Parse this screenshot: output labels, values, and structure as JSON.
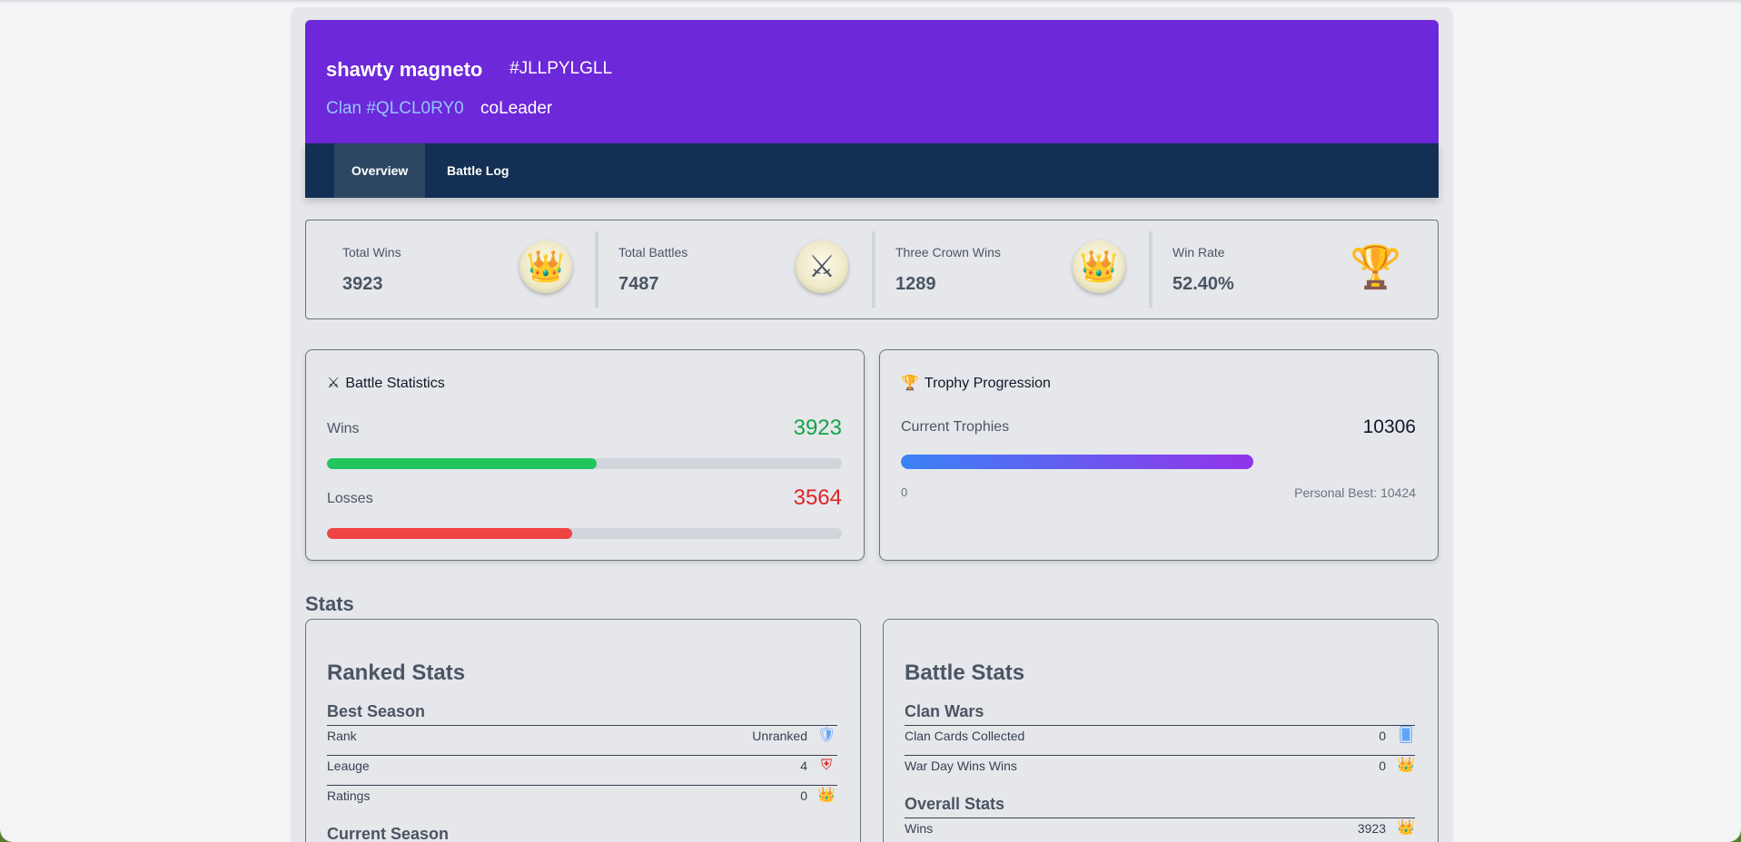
{
  "header": {
    "player_name": "shawty magneto",
    "player_tag": "#JLLPYLGLL",
    "clan_tag": "Clan #QLCL0RY0",
    "role": "coLeader"
  },
  "tabs": [
    {
      "label": "Overview",
      "active": true
    },
    {
      "label": "Battle Log",
      "active": false
    }
  ],
  "summary": [
    {
      "label": "Total Wins",
      "value": "3923",
      "icon": "crown-chest-icon"
    },
    {
      "label": "Total Battles",
      "value": "7487",
      "icon": "crossed-swords-icon"
    },
    {
      "label": "Three Crown Wins",
      "value": "1289",
      "icon": "crown-chest-icon"
    },
    {
      "label": "Win Rate",
      "value": "52.40%",
      "icon": "trophy-icon"
    }
  ],
  "battle_statistics": {
    "title": "Battle Statistics",
    "icon": "crossed-swords-icon",
    "wins_label": "Wins",
    "wins_value": "3923",
    "wins_fraction": 0.524,
    "losses_label": "Losses",
    "losses_value": "3564",
    "losses_fraction": 0.476,
    "wins_color": "#22c55e",
    "losses_color": "#ef4444"
  },
  "trophy_progression": {
    "title": "Trophy Progression",
    "icon": "trophy-icon",
    "current_label": "Current Trophies",
    "current_value": "10306",
    "min_label": "0",
    "best_label": "Personal Best: 10424",
    "progress_fraction": 0.686
  },
  "stats_section": {
    "title": "Stats",
    "ranked": {
      "title": "Ranked Stats",
      "best_season_title": "Best Season",
      "rows": [
        {
          "key": "Rank",
          "value": "Unranked",
          "icon": "shield-icon"
        },
        {
          "key": "Leauge",
          "value": "4",
          "icon": "league-badge-icon"
        },
        {
          "key": "Ratings",
          "value": "0",
          "icon": "crown-chest-icon"
        }
      ],
      "current_season_title": "Current Season"
    },
    "battle": {
      "title": "Battle Stats",
      "clan_wars_title": "Clan Wars",
      "clan_wars_rows": [
        {
          "key": "Clan Cards Collected",
          "value": "0",
          "icon": "cards-icon"
        },
        {
          "key": "War Day Wins Wins",
          "value": "0",
          "icon": "crown-chest-icon"
        }
      ],
      "overall_title": "Overall Stats",
      "overall_rows": [
        {
          "key": "Wins",
          "value": "3923",
          "icon": "crown-chest-icon"
        }
      ]
    }
  }
}
